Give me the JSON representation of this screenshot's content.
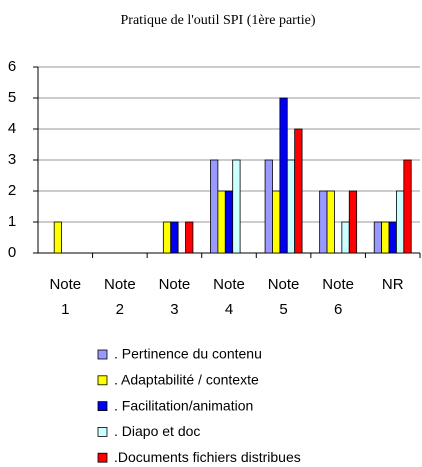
{
  "chart_data": {
    "type": "bar",
    "title": "Pratique de l'outil SPI (1ère partie)",
    "categories": [
      "Note 1",
      "Note 2",
      "Note 3",
      "Note 4",
      "Note 5",
      "Note 6",
      "NR"
    ],
    "series": [
      {
        "name": ". Pertinence du contenu",
        "color": "#9999ff",
        "values": [
          0,
          0,
          0,
          3,
          3,
          2,
          1
        ]
      },
      {
        "name": ". Adaptabilité / contexte",
        "color": "#ffff00",
        "values": [
          1,
          0,
          1,
          2,
          2,
          2,
          1
        ]
      },
      {
        "name": ". Facilitation/animation",
        "color": "#0000ee",
        "values": [
          0,
          0,
          1,
          2,
          5,
          0,
          1
        ]
      },
      {
        "name": ". Diapo et doc",
        "color": "#ccffff",
        "values": [
          0,
          0,
          0,
          3,
          3,
          1,
          2
        ]
      },
      {
        "name": ".Documents fichiers distribues",
        "color": "#ff0000",
        "values": [
          0,
          0,
          1,
          0,
          4,
          2,
          3
        ]
      }
    ],
    "ylim": [
      0,
      6
    ],
    "yticks": [
      0,
      1,
      2,
      3,
      4,
      5,
      6
    ],
    "grid": true,
    "legend": "bottom"
  }
}
